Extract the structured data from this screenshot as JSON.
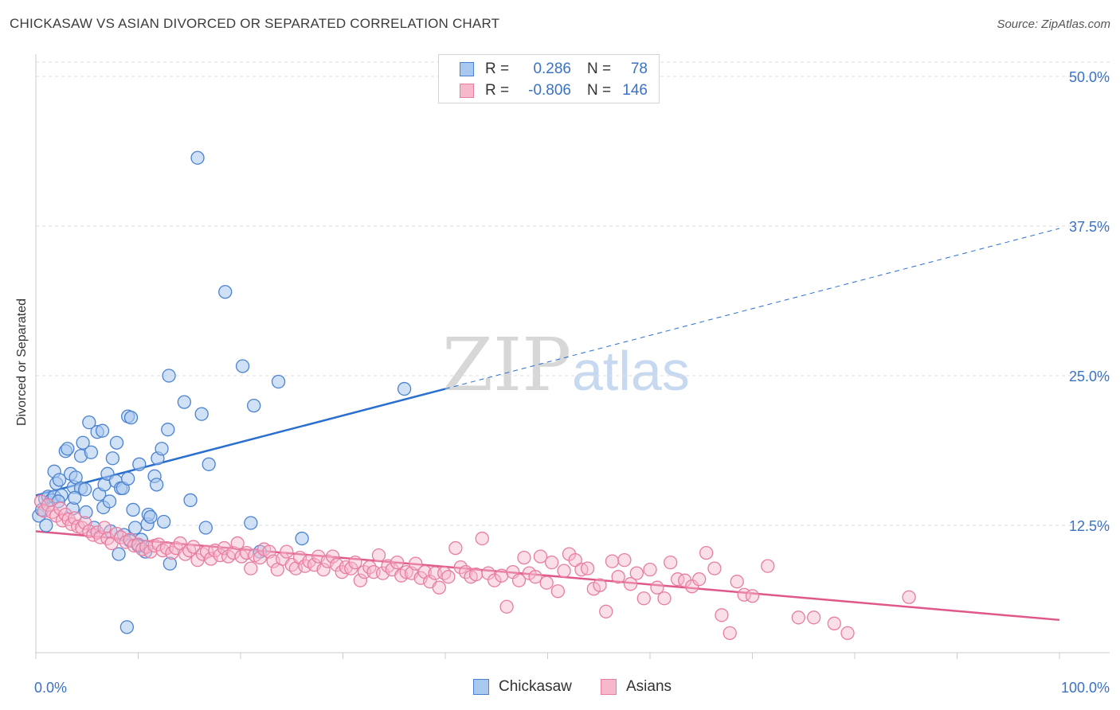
{
  "title": "CHICKASAW VS ASIAN DIVORCED OR SEPARATED CORRELATION CHART",
  "source": "Source: ZipAtlas.com",
  "watermark": {
    "part1": "ZIP",
    "part2": "atlas"
  },
  "legend": {
    "rows": [
      {
        "r_label": "R =",
        "r_value": "0.286",
        "n_label": "N =",
        "n_value": "78"
      },
      {
        "r_label": "R =",
        "r_value": "-0.806",
        "n_label": "N =",
        "n_value": "146"
      }
    ]
  },
  "bottom_legend": [
    "Chickasaw",
    "Asians"
  ],
  "colors": {
    "chickasaw_fill": "#a9c8ef",
    "chickasaw_stroke": "#4a82d0",
    "chickasaw_line": "#2a6fcf",
    "asians_fill": "#f6b9cc",
    "asians_stroke": "#e77da0",
    "asians_line": "#e0578a",
    "axis_text": "#3a72c4",
    "grid": "#dddddd"
  },
  "chart_data": {
    "type": "scatter",
    "title": "CHICKASAW VS ASIAN DIVORCED OR SEPARATED CORRELATION CHART",
    "xlabel": "",
    "ylabel": "Divorced or Separated",
    "xlim": [
      0,
      100
    ],
    "ylim": [
      0,
      53
    ],
    "x_tick_labels": [
      "0.0%",
      "100.0%"
    ],
    "y_ticks": [
      12.5,
      25.0,
      37.5,
      50.0
    ],
    "y_tick_labels": [
      "12.5%",
      "25.0%",
      "37.5%",
      "50.0%"
    ],
    "grid": "horizontal dashed",
    "legend_position": "top-center",
    "series": [
      {
        "name": "Chickasaw",
        "R": 0.286,
        "N": 78,
        "trend": {
          "x0": 0,
          "y0": 15.0,
          "x1": 40,
          "y1": 23.9,
          "dashed_to_x": 100,
          "dashed_to_y": 37.3
        },
        "points": [
          [
            0.3,
            13.3
          ],
          [
            0.6,
            13.8
          ],
          [
            0.9,
            14.7
          ],
          [
            1.2,
            14.9
          ],
          [
            1.5,
            14.6
          ],
          [
            1.8,
            14.9
          ],
          [
            1.8,
            17.0
          ],
          [
            2.0,
            16.0
          ],
          [
            2.3,
            16.3
          ],
          [
            2.5,
            15.0
          ],
          [
            2.9,
            18.7
          ],
          [
            3.1,
            18.9
          ],
          [
            3.4,
            16.8
          ],
          [
            3.6,
            13.9
          ],
          [
            3.7,
            15.7
          ],
          [
            3.9,
            16.5
          ],
          [
            4.4,
            15.6
          ],
          [
            4.4,
            18.3
          ],
          [
            4.6,
            19.4
          ],
          [
            4.8,
            15.5
          ],
          [
            4.9,
            13.6
          ],
          [
            5.2,
            21.1
          ],
          [
            5.4,
            18.6
          ],
          [
            6.0,
            20.3
          ],
          [
            6.2,
            15.1
          ],
          [
            6.5,
            20.4
          ],
          [
            6.6,
            14.0
          ],
          [
            6.7,
            15.9
          ],
          [
            7.0,
            16.8
          ],
          [
            7.2,
            14.5
          ],
          [
            7.5,
            18.1
          ],
          [
            7.8,
            16.2
          ],
          [
            7.9,
            19.4
          ],
          [
            8.1,
            10.1
          ],
          [
            8.3,
            15.6
          ],
          [
            8.5,
            15.6
          ],
          [
            8.6,
            11.7
          ],
          [
            8.9,
            4.0
          ],
          [
            9.0,
            16.4
          ],
          [
            9.0,
            21.6
          ],
          [
            9.3,
            21.5
          ],
          [
            9.5,
            13.8
          ],
          [
            9.7,
            12.3
          ],
          [
            10.1,
            17.6
          ],
          [
            10.3,
            11.3
          ],
          [
            10.7,
            10.3
          ],
          [
            10.9,
            12.6
          ],
          [
            11.0,
            13.4
          ],
          [
            11.2,
            13.2
          ],
          [
            11.6,
            16.6
          ],
          [
            11.8,
            15.9
          ],
          [
            11.9,
            18.1
          ],
          [
            12.3,
            18.9
          ],
          [
            12.9,
            20.5
          ],
          [
            13.1,
            9.3
          ],
          [
            13.0,
            25.0
          ],
          [
            14.5,
            22.8
          ],
          [
            15.1,
            14.6
          ],
          [
            15.8,
            43.2
          ],
          [
            16.2,
            21.8
          ],
          [
            16.6,
            12.3
          ],
          [
            16.9,
            17.6
          ],
          [
            18.5,
            32.0
          ],
          [
            20.2,
            25.8
          ],
          [
            21.0,
            12.7
          ],
          [
            21.3,
            22.5
          ],
          [
            21.9,
            10.3
          ],
          [
            23.7,
            24.5
          ],
          [
            26.0,
            11.4
          ],
          [
            36.0,
            23.9
          ],
          [
            1.0,
            12.5
          ],
          [
            2.2,
            14.5
          ],
          [
            5.7,
            12.3
          ],
          [
            7.3,
            12.0
          ],
          [
            9.2,
            11.2
          ],
          [
            12.5,
            12.8
          ],
          [
            3.8,
            14.8
          ],
          [
            10.0,
            10.8
          ]
        ]
      },
      {
        "name": "Asians",
        "R": -0.806,
        "N": 146,
        "trend": {
          "x0": 0,
          "y0": 12.0,
          "x1": 100,
          "y1": 4.6
        },
        "points": [
          [
            0.5,
            14.5
          ],
          [
            0.8,
            13.7
          ],
          [
            1.2,
            14.2
          ],
          [
            1.6,
            13.6
          ],
          [
            2.0,
            13.3
          ],
          [
            2.4,
            13.9
          ],
          [
            2.6,
            12.9
          ],
          [
            2.9,
            13.4
          ],
          [
            3.2,
            13.0
          ],
          [
            3.5,
            12.6
          ],
          [
            3.8,
            13.1
          ],
          [
            4.1,
            12.4
          ],
          [
            4.5,
            12.3
          ],
          [
            4.8,
            12.7
          ],
          [
            5.2,
            12.0
          ],
          [
            5.6,
            11.7
          ],
          [
            6.0,
            11.9
          ],
          [
            6.3,
            11.5
          ],
          [
            6.7,
            12.3
          ],
          [
            7.0,
            11.4
          ],
          [
            7.4,
            11.0
          ],
          [
            7.9,
            11.8
          ],
          [
            8.3,
            11.5
          ],
          [
            8.8,
            11.1
          ],
          [
            9.2,
            11.3
          ],
          [
            9.6,
            10.8
          ],
          [
            10.0,
            10.9
          ],
          [
            10.4,
            10.5
          ],
          [
            10.8,
            10.7
          ],
          [
            11.2,
            10.3
          ],
          [
            11.6,
            10.8
          ],
          [
            12.0,
            10.9
          ],
          [
            12.4,
            10.4
          ],
          [
            12.8,
            10.6
          ],
          [
            13.3,
            10.2
          ],
          [
            13.7,
            10.6
          ],
          [
            14.1,
            11.0
          ],
          [
            14.6,
            10.1
          ],
          [
            15.0,
            10.4
          ],
          [
            15.4,
            10.7
          ],
          [
            15.8,
            9.6
          ],
          [
            16.3,
            10.1
          ],
          [
            16.7,
            10.3
          ],
          [
            17.1,
            9.7
          ],
          [
            17.5,
            10.4
          ],
          [
            18.0,
            10.0
          ],
          [
            18.4,
            10.6
          ],
          [
            18.8,
            9.9
          ],
          [
            19.3,
            10.2
          ],
          [
            19.7,
            11.0
          ],
          [
            20.1,
            9.9
          ],
          [
            20.6,
            10.2
          ],
          [
            21.0,
            8.9
          ],
          [
            21.4,
            10.0
          ],
          [
            21.9,
            9.8
          ],
          [
            22.3,
            10.5
          ],
          [
            22.8,
            10.3
          ],
          [
            23.2,
            9.5
          ],
          [
            23.6,
            8.8
          ],
          [
            24.1,
            9.7
          ],
          [
            24.5,
            10.3
          ],
          [
            25.0,
            9.2
          ],
          [
            25.4,
            8.9
          ],
          [
            25.8,
            9.8
          ],
          [
            26.3,
            9.1
          ],
          [
            26.7,
            9.5
          ],
          [
            27.2,
            9.2
          ],
          [
            27.6,
            9.9
          ],
          [
            28.1,
            8.8
          ],
          [
            28.5,
            9.5
          ],
          [
            29.0,
            9.9
          ],
          [
            29.4,
            9.2
          ],
          [
            29.9,
            8.6
          ],
          [
            30.3,
            9.0
          ],
          [
            30.8,
            8.9
          ],
          [
            31.2,
            9.4
          ],
          [
            31.7,
            7.9
          ],
          [
            32.1,
            8.6
          ],
          [
            32.6,
            9.0
          ],
          [
            33.0,
            8.6
          ],
          [
            33.5,
            10.0
          ],
          [
            33.9,
            8.5
          ],
          [
            34.4,
            9.1
          ],
          [
            34.8,
            8.8
          ],
          [
            35.3,
            9.4
          ],
          [
            35.7,
            8.3
          ],
          [
            36.2,
            8.6
          ],
          [
            36.7,
            8.5
          ],
          [
            37.1,
            9.3
          ],
          [
            37.6,
            8.1
          ],
          [
            38.0,
            8.6
          ],
          [
            38.5,
            7.8
          ],
          [
            39.0,
            8.5
          ],
          [
            39.4,
            7.3
          ],
          [
            39.9,
            8.5
          ],
          [
            40.3,
            8.2
          ],
          [
            41.0,
            10.6
          ],
          [
            41.5,
            9.0
          ],
          [
            42.0,
            8.6
          ],
          [
            42.5,
            8.2
          ],
          [
            43.0,
            8.4
          ],
          [
            43.6,
            11.4
          ],
          [
            44.2,
            8.5
          ],
          [
            44.8,
            7.9
          ],
          [
            45.5,
            8.3
          ],
          [
            46.0,
            5.7
          ],
          [
            46.6,
            8.6
          ],
          [
            47.2,
            7.9
          ],
          [
            47.7,
            9.8
          ],
          [
            48.2,
            8.5
          ],
          [
            48.8,
            8.2
          ],
          [
            49.3,
            9.9
          ],
          [
            49.9,
            7.7
          ],
          [
            50.4,
            9.4
          ],
          [
            51.0,
            7.0
          ],
          [
            51.6,
            8.7
          ],
          [
            52.1,
            10.1
          ],
          [
            52.7,
            9.6
          ],
          [
            53.3,
            8.8
          ],
          [
            53.9,
            8.9
          ],
          [
            54.5,
            7.2
          ],
          [
            55.1,
            7.5
          ],
          [
            55.7,
            5.3
          ],
          [
            56.3,
            9.5
          ],
          [
            56.9,
            8.2
          ],
          [
            57.5,
            9.6
          ],
          [
            58.1,
            7.6
          ],
          [
            58.7,
            8.5
          ],
          [
            59.4,
            6.4
          ],
          [
            60.0,
            8.8
          ],
          [
            60.7,
            7.3
          ],
          [
            61.4,
            6.4
          ],
          [
            62.0,
            9.4
          ],
          [
            62.7,
            8.0
          ],
          [
            63.4,
            7.9
          ],
          [
            64.1,
            7.4
          ],
          [
            64.8,
            8.0
          ],
          [
            65.5,
            10.2
          ],
          [
            66.3,
            8.9
          ],
          [
            67.0,
            5.0
          ],
          [
            67.8,
            3.5
          ],
          [
            68.5,
            7.8
          ],
          [
            69.2,
            6.7
          ],
          [
            70.0,
            6.6
          ],
          [
            71.5,
            9.1
          ],
          [
            74.5,
            4.8
          ],
          [
            76.0,
            4.8
          ],
          [
            78.0,
            4.3
          ],
          [
            79.3,
            3.5
          ],
          [
            85.3,
            6.5
          ]
        ]
      }
    ]
  }
}
